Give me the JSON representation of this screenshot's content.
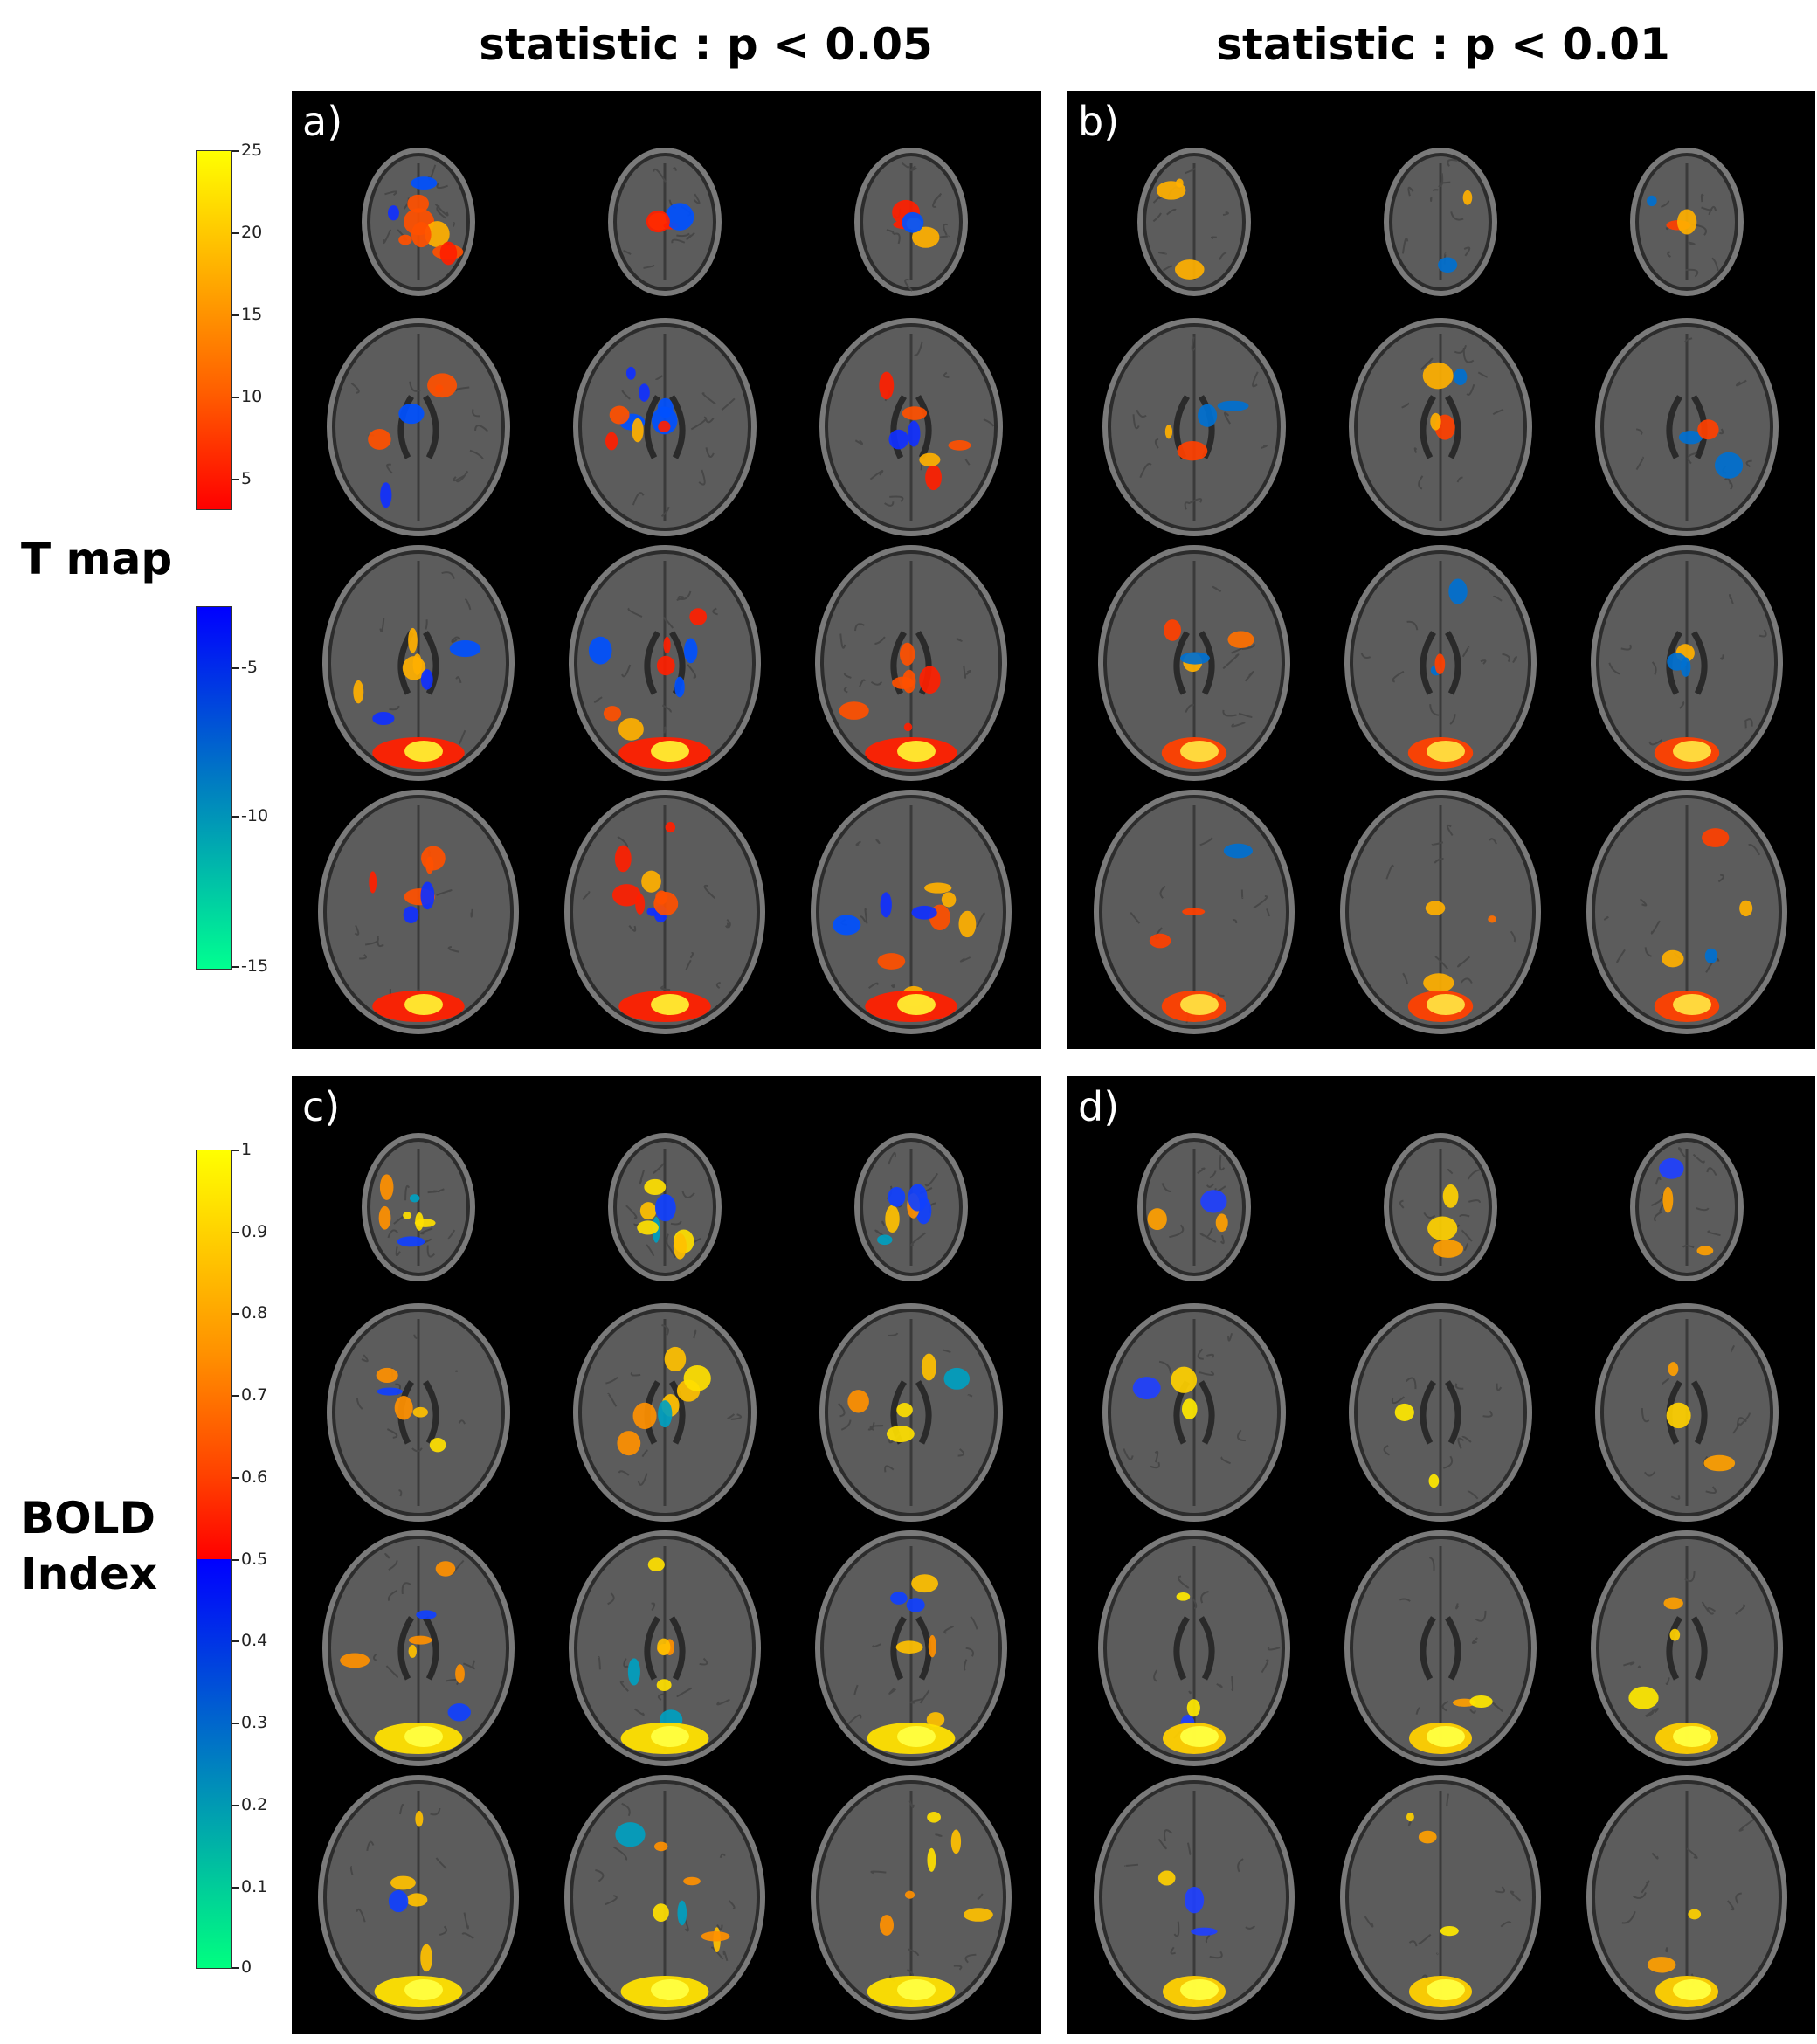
{
  "columns": [
    "statistic : p < 0.05",
    "statistic : p < 0.01"
  ],
  "rows": [
    {
      "lines": [
        "T map"
      ]
    },
    {
      "lines": [
        "BOLD",
        "Index"
      ]
    }
  ],
  "panels": [
    {
      "label": "a)"
    },
    {
      "label": "b)"
    },
    {
      "label": "c)"
    },
    {
      "label": "d)"
    }
  ],
  "colorbars": {
    "tmap_positive": {
      "ticks": [
        "25",
        "20",
        "15",
        "10",
        "5"
      ],
      "colors": [
        "#ffff00",
        "#ffb000",
        "#ff6000",
        "#ff0000"
      ]
    },
    "tmap_negative": {
      "ticks": [
        "-5",
        "-10",
        "-15"
      ],
      "colors": [
        "#0000ff",
        "#0080c0",
        "#00ff90"
      ]
    },
    "bold_index": {
      "ticks": [
        "1",
        "0.9",
        "0.8",
        "0.7",
        "0.6",
        "0.5",
        "0.4",
        "0.3",
        "0.2",
        "0.1",
        "0"
      ],
      "colors": [
        "#ffff00",
        "#ff9000",
        "#ff0000",
        "#0000ff",
        "#0080c0",
        "#00ff80"
      ]
    }
  }
}
